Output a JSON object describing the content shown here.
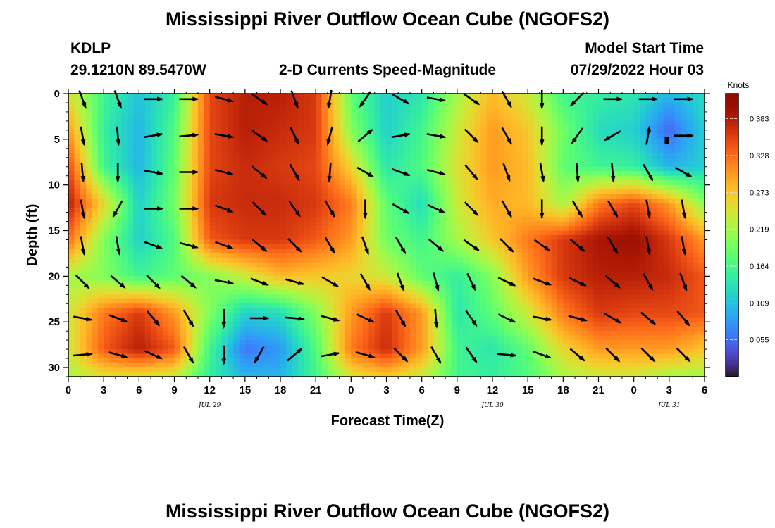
{
  "title_top": "Mississippi River Outflow Ocean Cube (NGOFS2)",
  "title_bottom": "Mississippi River Outflow Ocean Cube (NGOFS2)",
  "station": {
    "id": "KDLP",
    "coords": "29.1210N  89.5470W"
  },
  "chart_data": {
    "type": "heatmap",
    "title": "2-D Currents Speed-Magnitude",
    "model_start_label": "Model Start Time",
    "model_start_value": "07/29/2022 Hour 03",
    "xlabel": "Forecast Time(Z)",
    "ylabel": "Depth (ft)",
    "x_range_hours": [
      0,
      54
    ],
    "x_ticks": [
      "0",
      "3",
      "6",
      "9",
      "12",
      "15",
      "18",
      "21",
      "0",
      "3",
      "6",
      "9",
      "12",
      "15",
      "18",
      "21",
      "0",
      "3",
      "6"
    ],
    "date_labels": [
      {
        "text": "JUL 29",
        "hour": 12
      },
      {
        "text": "JUL 30",
        "hour": 36
      },
      {
        "text": "JUL 31",
        "hour": 51
      }
    ],
    "y_range_ft": [
      0,
      31
    ],
    "y_ticks": [
      0,
      5,
      10,
      15,
      20,
      25,
      30
    ],
    "colorbar": {
      "unit": "Knots",
      "range": [
        0.0,
        0.42
      ],
      "ticks": [
        "0.383",
        "0.328",
        "0.273",
        "0.219",
        "0.164",
        "0.109",
        "0.055"
      ],
      "tick_values": [
        0.383,
        0.328,
        0.273,
        0.219,
        0.164,
        0.109,
        0.055
      ],
      "colormap": "turbo"
    },
    "speed_knots": {
      "depths_ft": [
        0,
        4,
        8,
        12,
        16,
        20,
        24,
        28,
        31
      ],
      "hours": [
        0,
        3,
        6,
        9,
        12,
        15,
        18,
        21,
        24,
        27,
        30,
        33,
        36,
        39,
        42,
        45,
        48,
        51,
        54
      ],
      "values": [
        [
          0.25,
          0.16,
          0.11,
          0.15,
          0.35,
          0.38,
          0.38,
          0.36,
          0.18,
          0.12,
          0.14,
          0.22,
          0.28,
          0.24,
          0.16,
          0.15,
          0.14,
          0.1,
          0.13
        ],
        [
          0.3,
          0.15,
          0.1,
          0.17,
          0.35,
          0.38,
          0.37,
          0.36,
          0.2,
          0.12,
          0.16,
          0.24,
          0.3,
          0.27,
          0.19,
          0.13,
          0.12,
          0.05,
          0.12
        ],
        [
          0.35,
          0.16,
          0.1,
          0.18,
          0.35,
          0.37,
          0.36,
          0.35,
          0.26,
          0.14,
          0.17,
          0.25,
          0.3,
          0.28,
          0.18,
          0.16,
          0.15,
          0.1,
          0.12
        ],
        [
          0.38,
          0.26,
          0.12,
          0.19,
          0.36,
          0.37,
          0.37,
          0.36,
          0.32,
          0.18,
          0.13,
          0.24,
          0.29,
          0.28,
          0.22,
          0.32,
          0.35,
          0.3,
          0.2
        ],
        [
          0.33,
          0.2,
          0.12,
          0.17,
          0.34,
          0.36,
          0.36,
          0.34,
          0.3,
          0.19,
          0.16,
          0.22,
          0.27,
          0.32,
          0.36,
          0.39,
          0.4,
          0.36,
          0.3
        ],
        [
          0.22,
          0.2,
          0.16,
          0.18,
          0.2,
          0.24,
          0.28,
          0.27,
          0.26,
          0.24,
          0.18,
          0.15,
          0.2,
          0.3,
          0.36,
          0.38,
          0.38,
          0.37,
          0.34
        ],
        [
          0.24,
          0.32,
          0.36,
          0.3,
          0.2,
          0.12,
          0.13,
          0.2,
          0.3,
          0.36,
          0.3,
          0.14,
          0.18,
          0.24,
          0.32,
          0.36,
          0.35,
          0.35,
          0.34
        ],
        [
          0.24,
          0.34,
          0.38,
          0.34,
          0.16,
          0.06,
          0.08,
          0.17,
          0.32,
          0.37,
          0.3,
          0.16,
          0.14,
          0.18,
          0.26,
          0.3,
          0.3,
          0.3,
          0.27
        ],
        [
          0.22,
          0.25,
          0.25,
          0.24,
          0.15,
          0.1,
          0.1,
          0.16,
          0.25,
          0.27,
          0.24,
          0.16,
          0.15,
          0.17,
          0.22,
          0.24,
          0.24,
          0.22,
          0.22
        ]
      ]
    },
    "vectors": {
      "description": "direction arrows (screen degrees, 0=right, 90=down) per depth row",
      "depths_ft": [
        0,
        4,
        8,
        12,
        16,
        20,
        24,
        28
      ],
      "hours": [
        0,
        3,
        6,
        9,
        12,
        15,
        18,
        21,
        24,
        27,
        30,
        33,
        36,
        39,
        42,
        45,
        48,
        51
      ],
      "angles_deg": [
        [
          70,
          70,
          0,
          0,
          15,
          35,
          70,
          100,
          125,
          30,
          10,
          35,
          60,
          90,
          135,
          0,
          0,
          0
        ],
        [
          80,
          85,
          -10,
          -5,
          10,
          35,
          65,
          105,
          -40,
          -10,
          10,
          45,
          60,
          90,
          125,
          150,
          -80,
          0
        ],
        [
          85,
          90,
          10,
          0,
          15,
          40,
          60,
          95,
          30,
          20,
          15,
          50,
          70,
          80,
          85,
          85,
          60,
          30
        ],
        [
          80,
          120,
          0,
          0,
          20,
          45,
          55,
          60,
          90,
          30,
          25,
          45,
          60,
          90,
          60,
          60,
          80,
          80
        ],
        [
          80,
          80,
          20,
          15,
          20,
          40,
          45,
          60,
          70,
          60,
          40,
          35,
          45,
          35,
          40,
          60,
          80,
          80
        ],
        [
          45,
          40,
          45,
          40,
          10,
          20,
          15,
          30,
          60,
          70,
          75,
          65,
          25,
          20,
          25,
          40,
          60,
          70
        ],
        [
          10,
          20,
          50,
          60,
          90,
          0,
          5,
          15,
          25,
          60,
          85,
          55,
          25,
          10,
          15,
          30,
          40,
          50
        ],
        [
          -5,
          15,
          25,
          60,
          90,
          120,
          -40,
          -10,
          15,
          45,
          60,
          55,
          5,
          20,
          40,
          45,
          45,
          45
        ]
      ]
    }
  }
}
